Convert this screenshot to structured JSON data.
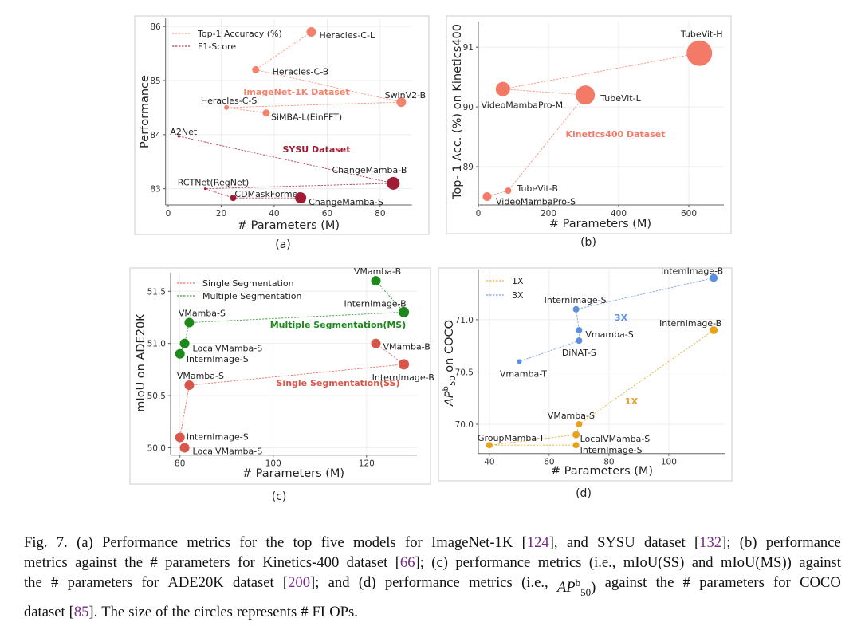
{
  "chart_data": [
    {
      "type": "scatter",
      "panel_label": "(a)",
      "xlabel": "# Parameters (M)",
      "ylabel": "Performance",
      "xlim": [
        -1,
        92
      ],
      "ylim": [
        82.7,
        86.15
      ],
      "xticks": [
        "0",
        "20",
        "40",
        "60",
        "80"
      ],
      "xtick_values": [
        0,
        20,
        40,
        60,
        80
      ],
      "yticks": [
        "83",
        "84",
        "85",
        "86"
      ],
      "ytick_values": [
        83,
        84,
        85,
        86
      ],
      "grid": true,
      "legend": "top-left",
      "series": [
        {
          "name": "Top-1 Accuracy (%)",
          "color": "#f4826c",
          "annotation": "ImageNet-1K Dataset",
          "points": [
            {
              "label": "Heracles-C-L",
              "x": 54,
              "y": 85.9,
              "size": 6
            },
            {
              "label": "Heracles-C-B",
              "x": 33,
              "y": 85.2,
              "size": 4.5
            },
            {
              "label": "SwinV2-B",
              "x": 88,
              "y": 84.6,
              "size": 6
            },
            {
              "label": "Heracles-C-S",
              "x": 22,
              "y": 84.5,
              "size": 3
            },
            {
              "label": "SiMBA-L(EinFFT)",
              "x": 37,
              "y": 84.4,
              "size": 4.5
            }
          ]
        },
        {
          "name": "F1-Score",
          "color": "#a01c35",
          "annotation": "SYSU Dataset",
          "points": [
            {
              "label": "A2Net",
              "x": 4,
              "y": 83.97,
              "size": 1.6
            },
            {
              "label": "ChangeMamba-B",
              "x": 85,
              "y": 83.1,
              "size": 8
            },
            {
              "label": "RCTNet(RegNet)",
              "x": 14,
              "y": 83.0,
              "size": 1.6
            },
            {
              "label": "CDMaskFormer",
              "x": 24.5,
              "y": 82.83,
              "size": 4
            },
            {
              "label": "ChangeMamba-S",
              "x": 50,
              "y": 82.83,
              "size": 7
            }
          ]
        }
      ]
    },
    {
      "type": "scatter",
      "panel_label": "(b)",
      "xlabel": "# Parameters (M)",
      "ylabel": "Top- 1 Acc. (%) on Kinetics400",
      "xlim": [
        0,
        700
      ],
      "ylim": [
        88.36,
        91.43
      ],
      "xticks": [
        "0",
        "200",
        "400",
        "600"
      ],
      "xtick_values": [
        0,
        200,
        400,
        600
      ],
      "yticks": [
        "89",
        "90",
        "91"
      ],
      "ytick_values": [
        89,
        90,
        91
      ],
      "grid": true,
      "legend": "none",
      "series": [
        {
          "color": "#f47a68",
          "annotation": "Kinetics400 Dataset",
          "points": [
            {
              "label": "TubeVit-H",
              "x": 630,
              "y": 90.9,
              "size": 16
            },
            {
              "label": "VideoMambaPro-M",
              "x": 70,
              "y": 90.3,
              "size": 9
            },
            {
              "label": "TubeVit-L",
              "x": 305,
              "y": 90.2,
              "size": 12
            },
            {
              "label": "TubeVit-B",
              "x": 85,
              "y": 88.6,
              "size": 4
            },
            {
              "label": "VideoMambaPro-S",
              "x": 25,
              "y": 88.5,
              "size": 5.5
            }
          ]
        }
      ]
    },
    {
      "type": "scatter",
      "panel_label": "(c)",
      "xlabel": "# Parameters (M)",
      "ylabel": "mIoU on ADE20K",
      "xlim": [
        78,
        130.8
      ],
      "ylim": [
        49.93,
        51.68
      ],
      "xticks": [
        "80",
        "100",
        "120"
      ],
      "xtick_values": [
        80,
        100,
        120
      ],
      "yticks": [
        "50.0",
        "50.5",
        "51.0",
        "51.5"
      ],
      "ytick_values": [
        50.0,
        50.5,
        51.0,
        51.5
      ],
      "grid": true,
      "legend": "top-left",
      "series": [
        {
          "name": "Single Segmentation",
          "color": "#d9574a",
          "annotation": "Single Segmentation(SS)",
          "points": [
            {
              "label": "VMamba-B",
              "x": 122,
              "y": 51.0,
              "size": 6
            },
            {
              "label": "InternImage-B",
              "x": 128,
              "y": 50.8,
              "size": 6.5
            },
            {
              "label": "VMamba-S",
              "x": 82,
              "y": 50.6,
              "size": 6
            },
            {
              "label": "InternImage-S",
              "x": 80,
              "y": 50.1,
              "size": 6
            },
            {
              "label": "LocalVMamba-S",
              "x": 81,
              "y": 50.0,
              "size": 6
            }
          ]
        },
        {
          "name": "Multiple Segmentation",
          "color": "#1b8a1b",
          "annotation": "Multiple Segmentation(MS)",
          "points": [
            {
              "label": "VMamba-B",
              "x": 122,
              "y": 51.6,
              "size": 6
            },
            {
              "label": "InternImage-B",
              "x": 128,
              "y": 51.3,
              "size": 6.5
            },
            {
              "label": "VMamba-S",
              "x": 82,
              "y": 51.2,
              "size": 6
            },
            {
              "label": "LocalVMamba-S",
              "x": 81,
              "y": 51.0,
              "size": 6
            },
            {
              "label": "InternImage-S",
              "x": 80,
              "y": 50.9,
              "size": 6
            }
          ]
        }
      ]
    },
    {
      "type": "scatter",
      "panel_label": "(d)",
      "xlabel": "# Parameters (M)",
      "ylabel_parts": [
        "AP",
        "b",
        "50",
        " on COCO"
      ],
      "xlim": [
        36.3,
        118.7
      ],
      "ylim": [
        69.72,
        71.48
      ],
      "xticks": [
        "40",
        "60",
        "80",
        "100"
      ],
      "xtick_values": [
        40,
        60,
        80,
        100
      ],
      "yticks": [
        "70.0",
        "70.5",
        "71.0"
      ],
      "ytick_values": [
        70.0,
        70.5,
        71.0
      ],
      "grid": true,
      "legend": "top-left",
      "series": [
        {
          "name": "1X",
          "color": "#e8a21a",
          "annotation": "1X",
          "points": [
            {
              "label": "InternImage-B",
              "x": 115,
              "y": 70.9,
              "size": 5
            },
            {
              "label": "VMamba-S",
              "x": 70,
              "y": 70.0,
              "size": 4
            },
            {
              "label": "LocalVMamba-S",
              "x": 69,
              "y": 69.9,
              "size": 4.5
            },
            {
              "label": "GroupMamba-T",
              "x": 40,
              "y": 69.8,
              "size": 4
            },
            {
              "label": "InternImage-S",
              "x": 69,
              "y": 69.8,
              "size": 4
            }
          ]
        },
        {
          "name": "3X",
          "color": "#5b8fe0",
          "annotation": "3X",
          "points": [
            {
              "label": "InternImage-B",
              "x": 115,
              "y": 71.4,
              "size": 5
            },
            {
              "label": "InternImage-S",
              "x": 69,
              "y": 71.1,
              "size": 4
            },
            {
              "label": "Vmamba-S",
              "x": 70,
              "y": 70.9,
              "size": 4
            },
            {
              "label": "DiNAT-S",
              "x": 70,
              "y": 70.8,
              "size": 4
            },
            {
              "label": "Vmamba-T",
              "x": 50,
              "y": 70.6,
              "size": 3
            }
          ]
        }
      ]
    }
  ],
  "caption": {
    "lines": [
      [
        {
          "t": "Fig. 7.  (a) Performance metrics for the top five models for ImageNet-1K ["
        },
        {
          "t": "124",
          "cite": true
        },
        {
          "t": "], and SYSU dataset ["
        },
        {
          "t": "132",
          "cite": true
        },
        {
          "t": "]; (b) performance"
        }
      ],
      [
        {
          "t": "metrics against the # parameters for Kinetics-400 dataset ["
        },
        {
          "t": "66",
          "cite": true
        },
        {
          "t": "]; (c) performance metrics (i.e., mIoU(SS) and mIoU(MS)) against"
        }
      ],
      [
        {
          "t": "the # parameters for ADE20K dataset ["
        },
        {
          "t": "200",
          "cite": true
        },
        {
          "t": "]; and (d) performance metrics (i.e., "
        },
        {
          "t": "AP",
          "it": true
        },
        {
          "t": "b",
          "sup": true
        },
        {
          "t": "50",
          "sub": true
        },
        {
          "t": ") against the # parameters for COCO"
        }
      ],
      [
        {
          "t": "dataset ["
        },
        {
          "t": "85",
          "cite": true
        },
        {
          "t": "]. The size of the circles represents # FLOPs."
        }
      ]
    ]
  }
}
